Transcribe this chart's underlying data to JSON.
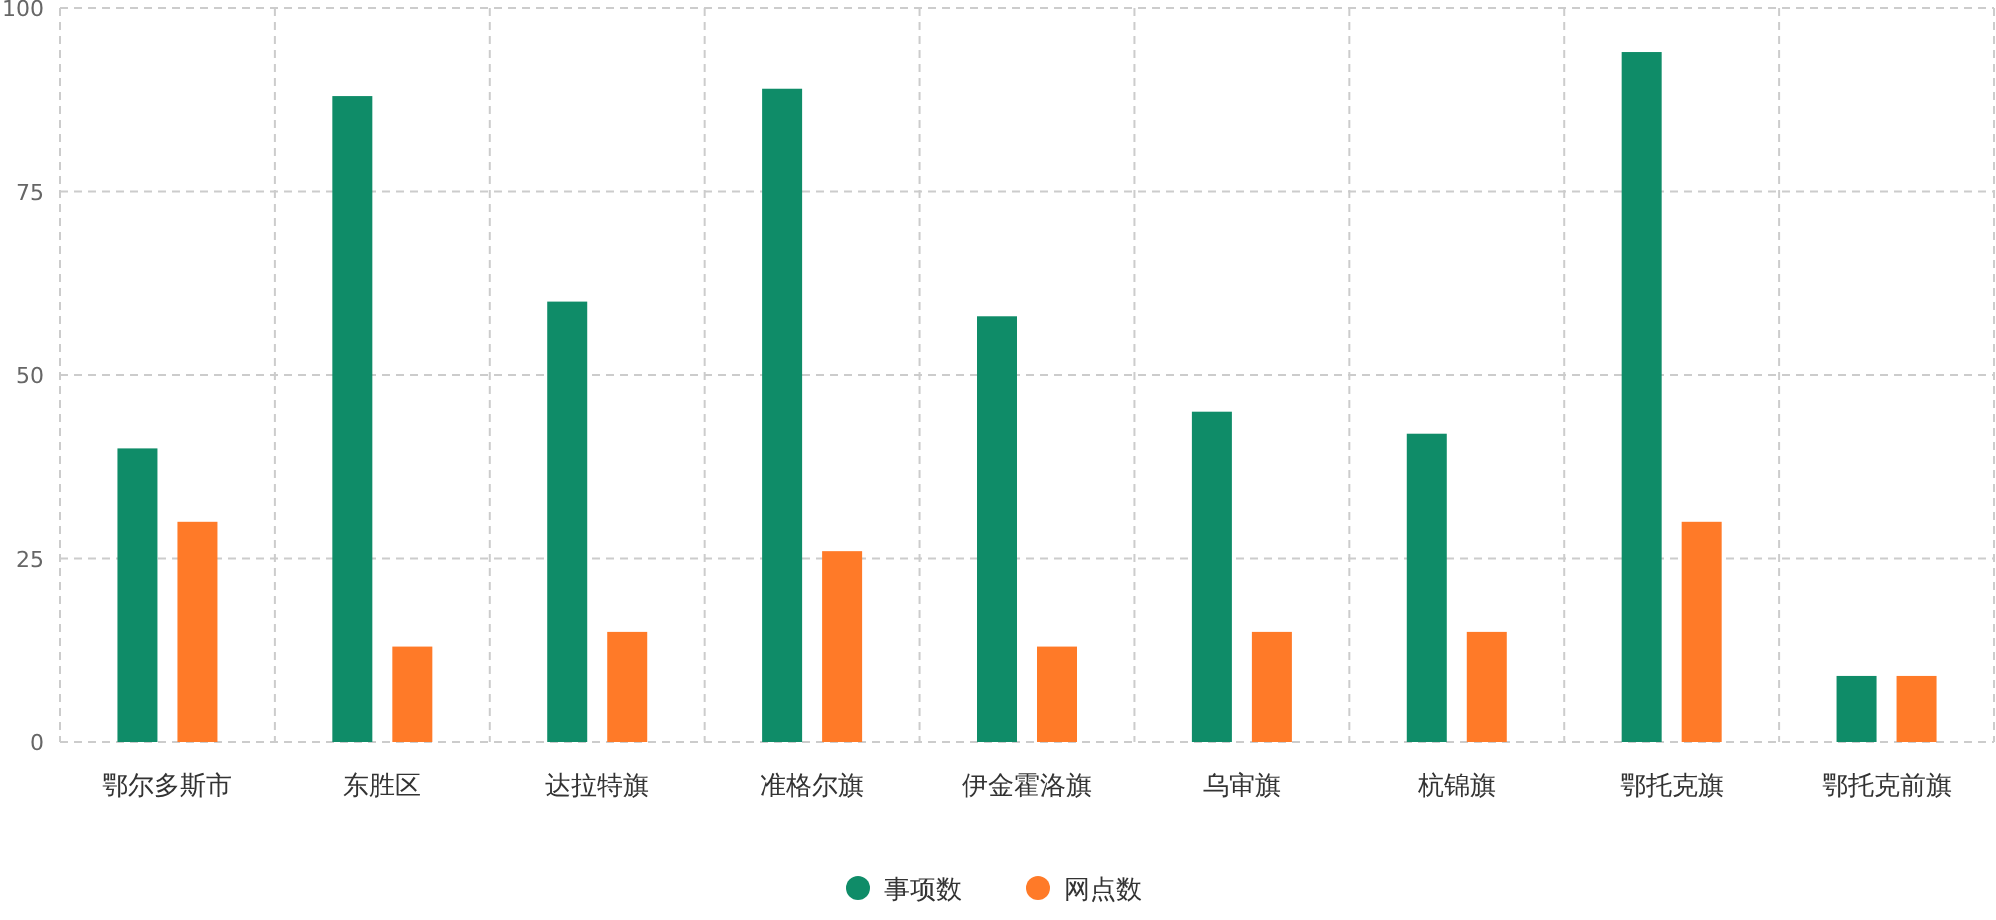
{
  "chart_data": {
    "type": "bar",
    "categories": [
      "鄂尔多斯市",
      "东胜区",
      "达拉特旗",
      "准格尔旗",
      "伊金霍洛旗",
      "乌审旗",
      "杭锦旗",
      "鄂托克旗",
      "鄂托克前旗"
    ],
    "series": [
      {
        "name": "事项数",
        "color": "#0f8c68",
        "values": [
          40,
          88,
          60,
          89,
          58,
          45,
          42,
          94,
          9
        ]
      },
      {
        "name": "网点数",
        "color": "#ff7a28",
        "values": [
          30,
          13,
          15,
          26,
          13,
          15,
          15,
          30,
          9
        ]
      }
    ],
    "ylim": [
      0,
      100
    ],
    "yticks": [
      0,
      25,
      50,
      75,
      100
    ],
    "grid": true,
    "legend": "bottom"
  }
}
